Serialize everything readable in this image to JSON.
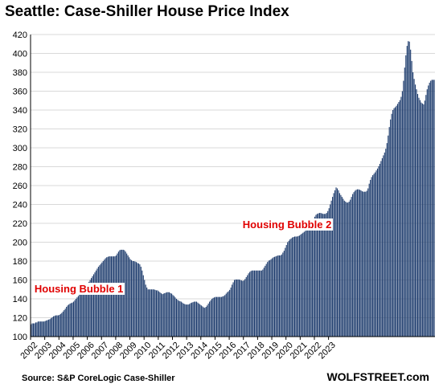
{
  "chart_data": {
    "type": "bar",
    "title": "Seattle: Case-Shiller House Price Index",
    "source": "Source: S&P CoreLogic Case-Shiller",
    "watermark": "WOLFSTREET.com",
    "ylim": [
      100,
      420
    ],
    "y_ticks": [
      100,
      120,
      140,
      160,
      180,
      200,
      220,
      240,
      260,
      280,
      300,
      320,
      340,
      360,
      380,
      400,
      420
    ],
    "x_ticks": [
      "2002",
      "2003",
      "2004",
      "2005",
      "2006",
      "2007",
      "2008",
      "2009",
      "2010",
      "2011",
      "2012",
      "2013",
      "2014",
      "2015",
      "2016",
      "2017",
      "2018",
      "2019",
      "2020",
      "2021",
      "2022",
      "2023"
    ],
    "x_start": "2002-01",
    "annotations": [
      {
        "text": "Housing Bubble 1",
        "x": "2002-03",
        "y": 150
      },
      {
        "text": "Housing Bubble 2",
        "x": "2016-11",
        "y": 218
      }
    ],
    "bar_color": "#1f3d6e",
    "grid": true,
    "values": [
      113,
      114,
      114,
      114,
      115,
      115,
      116,
      116,
      116,
      116,
      116,
      116,
      116.5,
      117,
      117.5,
      118,
      118.5,
      119.5,
      120.5,
      121.5,
      122,
      122.5,
      122.5,
      122.5,
      123,
      124,
      125,
      126.5,
      128,
      129.5,
      131.5,
      133,
      134,
      135,
      135.5,
      136,
      137,
      138.5,
      140,
      141.5,
      143,
      145,
      147,
      149,
      150.5,
      152,
      153,
      154,
      156,
      158,
      160,
      162,
      164,
      166,
      168,
      170,
      172,
      174,
      175.5,
      177,
      178.5,
      180,
      181.5,
      183,
      184,
      184.5,
      185,
      185,
      185,
      185,
      185,
      185,
      186,
      188,
      190,
      191.5,
      192,
      192,
      192,
      191.5,
      190,
      188,
      186,
      184,
      182,
      181,
      180,
      180,
      179.5,
      179,
      178,
      177.5,
      176.5,
      174,
      170,
      165,
      160,
      155,
      152,
      150,
      150,
      150,
      150,
      150,
      150,
      149.5,
      149,
      149,
      148,
      147,
      146,
      145,
      145.5,
      146,
      146.5,
      147,
      147,
      147,
      146,
      145.5,
      144,
      143,
      141.5,
      140,
      139,
      138,
      137.5,
      137,
      136,
      135,
      134.5,
      134,
      134,
      134,
      134.5,
      135.5,
      136,
      136.5,
      137,
      137,
      137,
      136,
      135,
      134,
      133,
      132,
      131,
      130.5,
      131.5,
      133,
      135,
      137,
      138.5,
      140,
      141,
      141.5,
      142,
      142,
      142,
      142,
      142,
      142,
      142.5,
      143,
      144,
      145.5,
      147,
      148,
      149.5,
      152,
      155,
      157.5,
      160,
      160.5,
      160.5,
      160.5,
      160.5,
      160,
      159.5,
      159,
      159.5,
      161,
      163,
      165,
      167,
      168.5,
      169.5,
      170,
      170,
      170,
      170,
      170,
      170,
      170,
      170,
      170,
      171,
      173,
      175,
      177,
      179,
      180.5,
      181,
      182,
      183,
      184,
      184.5,
      185,
      185.5,
      186,
      186,
      186,
      187,
      189,
      191,
      194,
      197,
      200,
      201.5,
      203,
      204,
      205,
      205.5,
      206,
      206,
      206,
      206.5,
      207,
      208,
      209,
      210,
      211,
      212,
      213.5,
      215,
      217,
      219,
      221,
      223.5,
      225,
      227,
      229,
      230,
      230.5,
      231,
      231,
      230.5,
      230,
      230,
      230,
      231,
      233,
      236,
      240,
      244,
      248,
      252,
      255,
      258,
      257,
      255,
      252,
      250,
      248,
      246,
      244,
      243,
      242,
      242,
      243,
      245,
      248,
      251,
      253,
      254.5,
      255.5,
      256,
      256,
      255.5,
      255,
      254,
      253.5,
      253.5,
      253.5,
      254.5,
      257,
      262,
      266,
      269,
      271,
      272.5,
      274,
      276,
      278,
      280.5,
      283,
      286,
      289,
      292,
      295,
      299,
      305,
      313,
      322,
      330,
      336,
      340,
      342,
      343,
      344.5,
      346.5,
      348.5,
      350.5,
      354,
      360,
      371,
      385,
      398,
      408,
      413,
      412.5,
      404,
      392,
      380,
      373,
      367,
      362,
      357,
      353,
      350.5,
      348,
      347,
      346,
      350,
      356,
      362,
      366,
      369,
      371,
      372,
      372,
      372
    ]
  }
}
